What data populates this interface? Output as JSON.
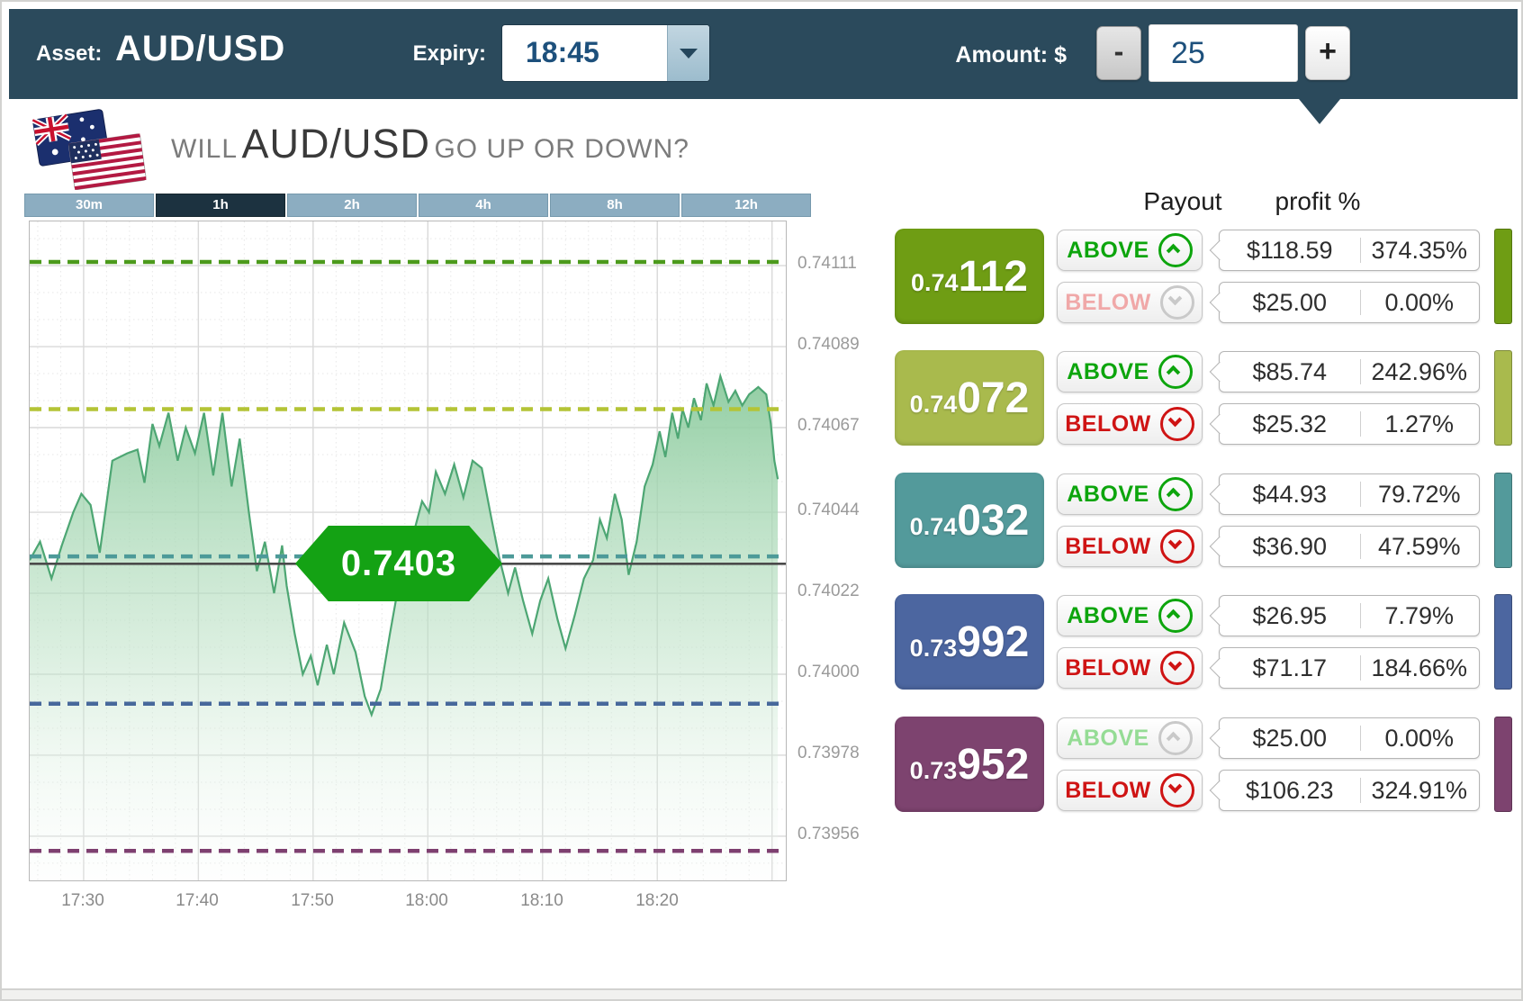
{
  "header": {
    "asset_label": "Asset:",
    "asset_value": "AUD/USD",
    "expiry_label": "Expiry:",
    "expiry_value": "18:45",
    "amount_label": "Amount: $",
    "amount_minus": "-",
    "amount_value": "25",
    "amount_plus": "+",
    "bg_color": "#2b4a5c"
  },
  "question": {
    "prefix": "WILL",
    "asset": "AUD/USD",
    "suffix": "GO UP OR DOWN?"
  },
  "timeframes": [
    {
      "label": "30m",
      "active": false
    },
    {
      "label": "1h",
      "active": true
    },
    {
      "label": "2h",
      "active": false
    },
    {
      "label": "4h",
      "active": false
    },
    {
      "label": "8h",
      "active": false
    },
    {
      "label": "12h",
      "active": false
    }
  ],
  "table_headers": {
    "payout": "Payout",
    "profit": "profit %"
  },
  "strikes": [
    {
      "prefix": "0.74",
      "main": "112",
      "color": "#6f9d14",
      "above": {
        "label": "ABOVE",
        "payout": "$118.59",
        "profit": "374.35%",
        "disabled": false
      },
      "below": {
        "label": "BELOW",
        "payout": "$25.00",
        "profit": "0.00%",
        "disabled": true
      }
    },
    {
      "prefix": "0.74",
      "main": "072",
      "color": "#a9ba4d",
      "above": {
        "label": "ABOVE",
        "payout": "$85.74",
        "profit": "242.96%",
        "disabled": false
      },
      "below": {
        "label": "BELOW",
        "payout": "$25.32",
        "profit": "1.27%",
        "disabled": false
      }
    },
    {
      "prefix": "0.74",
      "main": "032",
      "color": "#539a9b",
      "above": {
        "label": "ABOVE",
        "payout": "$44.93",
        "profit": "79.72%",
        "disabled": false
      },
      "below": {
        "label": "BELOW",
        "payout": "$36.90",
        "profit": "47.59%",
        "disabled": false
      }
    },
    {
      "prefix": "0.73",
      "main": "992",
      "color": "#4c66a0",
      "above": {
        "label": "ABOVE",
        "payout": "$26.95",
        "profit": "7.79%",
        "disabled": false
      },
      "below": {
        "label": "BELOW",
        "payout": "$71.17",
        "profit": "184.66%",
        "disabled": false
      }
    },
    {
      "prefix": "0.73",
      "main": "952",
      "color": "#7d436f",
      "above": {
        "label": "ABOVE",
        "payout": "$25.00",
        "profit": "0.00%",
        "disabled": true
      },
      "below": {
        "label": "BELOW",
        "payout": "$106.23",
        "profit": "324.91%",
        "disabled": false
      }
    }
  ],
  "chart_data": {
    "type": "area",
    "title": "AUD/USD 1h",
    "x_axis": {
      "tick_labels": [
        "17:30",
        "17:40",
        "17:50",
        "18:00",
        "18:10",
        "18:20"
      ],
      "tick_minutes": [
        30,
        40,
        50,
        60,
        70,
        80
      ],
      "domain_minutes": [
        25.3,
        91.2
      ]
    },
    "y_axis": {
      "tick_labels": [
        "0.74111",
        "0.74089",
        "0.74067",
        "0.74044",
        "0.74022",
        "0.74000",
        "0.73978",
        "0.73956"
      ],
      "tick_values": [
        0.74111,
        0.74089,
        0.74067,
        0.74044,
        0.74022,
        0.74,
        0.73978,
        0.73956
      ],
      "domain": [
        0.73944,
        0.74123
      ]
    },
    "grid": {
      "major_color": "#d9d9d9",
      "minor_color": "#e7e7e7"
    },
    "line_color": "#4da673",
    "strike_lines": [
      {
        "price": 0.74112,
        "color": "#4c9a1c"
      },
      {
        "price": 0.74072,
        "color": "#b4c436"
      },
      {
        "price": 0.74032,
        "color": "#4d9a99"
      },
      {
        "price": 0.73992,
        "color": "#47689b"
      },
      {
        "price": 0.73952,
        "color": "#7e4070"
      }
    ],
    "current_price": {
      "value": 0.7403,
      "label": "0.7403",
      "line_color": "#4a4a4a",
      "marker_color": "#14a214"
    },
    "series": [
      [
        25.3,
        0.74031
      ],
      [
        26.2,
        0.74036
      ],
      [
        27.2,
        0.74026
      ],
      [
        28.1,
        0.74035
      ],
      [
        29.1,
        0.74044
      ],
      [
        29.8,
        0.74049
      ],
      [
        30.6,
        0.74046
      ],
      [
        31.4,
        0.74033
      ],
      [
        32.5,
        0.74058
      ],
      [
        33.8,
        0.7406
      ],
      [
        34.7,
        0.74061
      ],
      [
        35.3,
        0.74052
      ],
      [
        36.0,
        0.74068
      ],
      [
        36.6,
        0.74062
      ],
      [
        37.4,
        0.74071
      ],
      [
        38.2,
        0.74058
      ],
      [
        38.9,
        0.74067
      ],
      [
        39.7,
        0.7406
      ],
      [
        40.5,
        0.74071
      ],
      [
        41.3,
        0.74054
      ],
      [
        42.1,
        0.74071
      ],
      [
        42.9,
        0.74051
      ],
      [
        43.6,
        0.74064
      ],
      [
        44.4,
        0.74044
      ],
      [
        45.1,
        0.74028
      ],
      [
        45.8,
        0.74036
      ],
      [
        46.6,
        0.74022
      ],
      [
        47.3,
        0.74035
      ],
      [
        47.7,
        0.74024
      ],
      [
        48.4,
        0.74011
      ],
      [
        49.1,
        0.74
      ],
      [
        49.8,
        0.74005
      ],
      [
        50.4,
        0.73997
      ],
      [
        51.2,
        0.74008
      ],
      [
        51.8,
        0.74
      ],
      [
        52.7,
        0.74014
      ],
      [
        53.7,
        0.74006
      ],
      [
        54.5,
        0.73994
      ],
      [
        55.1,
        0.73989
      ],
      [
        55.9,
        0.73996
      ],
      [
        56.7,
        0.74011
      ],
      [
        57.5,
        0.74025
      ],
      [
        58.2,
        0.74033
      ],
      [
        58.9,
        0.7404
      ],
      [
        59.5,
        0.74047
      ],
      [
        60.1,
        0.74044
      ],
      [
        60.7,
        0.74055
      ],
      [
        61.5,
        0.74049
      ],
      [
        62.3,
        0.74057
      ],
      [
        63.1,
        0.74048
      ],
      [
        63.9,
        0.74058
      ],
      [
        64.7,
        0.74056
      ],
      [
        65.5,
        0.74043
      ],
      [
        66.2,
        0.74032
      ],
      [
        67.0,
        0.74022
      ],
      [
        67.6,
        0.74029
      ],
      [
        68.3,
        0.7402
      ],
      [
        69.1,
        0.74011
      ],
      [
        69.8,
        0.7402
      ],
      [
        70.5,
        0.74026
      ],
      [
        71.3,
        0.74015
      ],
      [
        72.0,
        0.74007
      ],
      [
        72.8,
        0.74016
      ],
      [
        73.6,
        0.74026
      ],
      [
        74.4,
        0.74031
      ],
      [
        75.0,
        0.74042
      ],
      [
        75.6,
        0.74037
      ],
      [
        76.3,
        0.74049
      ],
      [
        76.9,
        0.74042
      ],
      [
        77.5,
        0.74027
      ],
      [
        78.2,
        0.74036
      ],
      [
        78.9,
        0.74051
      ],
      [
        79.6,
        0.74057
      ],
      [
        80.2,
        0.74066
      ],
      [
        80.7,
        0.74059
      ],
      [
        81.3,
        0.74071
      ],
      [
        81.8,
        0.74064
      ],
      [
        82.2,
        0.74072
      ],
      [
        82.7,
        0.74067
      ],
      [
        83.2,
        0.74075
      ],
      [
        83.8,
        0.74069
      ],
      [
        84.3,
        0.74079
      ],
      [
        84.9,
        0.74073
      ],
      [
        85.5,
        0.74081
      ],
      [
        86.2,
        0.74074
      ],
      [
        86.8,
        0.74077
      ],
      [
        87.4,
        0.74073
      ],
      [
        88.0,
        0.74076
      ],
      [
        88.8,
        0.74078
      ],
      [
        89.5,
        0.74076
      ],
      [
        89.9,
        0.74068
      ],
      [
        90.2,
        0.74058
      ],
      [
        90.5,
        0.74053
      ]
    ]
  }
}
